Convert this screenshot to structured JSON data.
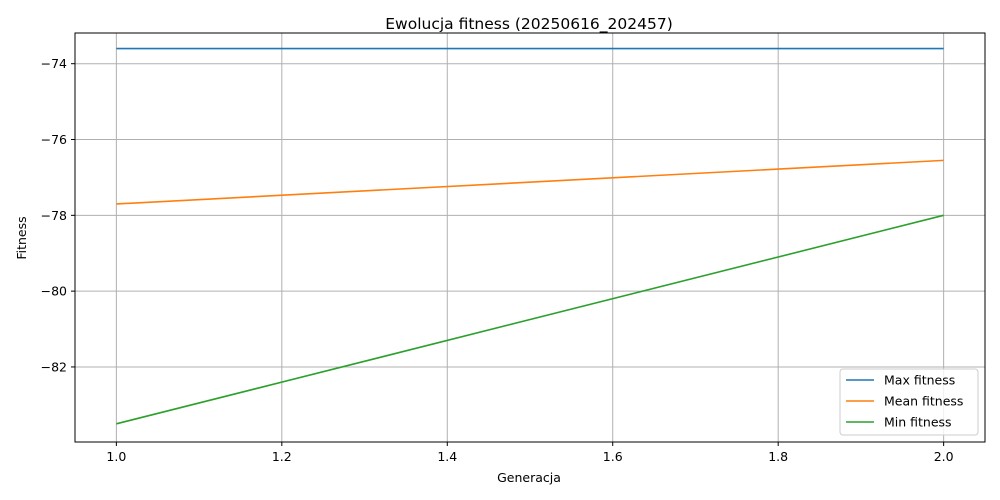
{
  "chart_data": {
    "type": "line",
    "title": "Ewolucja fitness (20250616_202457)",
    "xlabel": "Generacja",
    "ylabel": "Fitness",
    "x": [
      1.0,
      2.0
    ],
    "xlim": [
      0.95,
      2.05
    ],
    "ylim": [
      -83.98,
      -73.19
    ],
    "xticks": [
      1.0,
      1.2,
      1.4,
      1.6,
      1.8,
      2.0
    ],
    "xtick_labels": [
      "1.0",
      "1.2",
      "1.4",
      "1.6",
      "1.8",
      "2.0"
    ],
    "yticks": [
      -82,
      -80,
      -78,
      -76,
      -74
    ],
    "ytick_labels": [
      "−82",
      "−80",
      "−78",
      "−76",
      "−74"
    ],
    "grid": true,
    "legend_position": "lower-right",
    "series": [
      {
        "name": "Max fitness",
        "color": "#1f77b4",
        "values": [
          -73.6,
          -73.6
        ]
      },
      {
        "name": "Mean fitness",
        "color": "#ff7f0e",
        "values": [
          -77.7,
          -76.55
        ]
      },
      {
        "name": "Min fitness",
        "color": "#2ca02c",
        "values": [
          -83.5,
          -78.0
        ]
      }
    ]
  }
}
